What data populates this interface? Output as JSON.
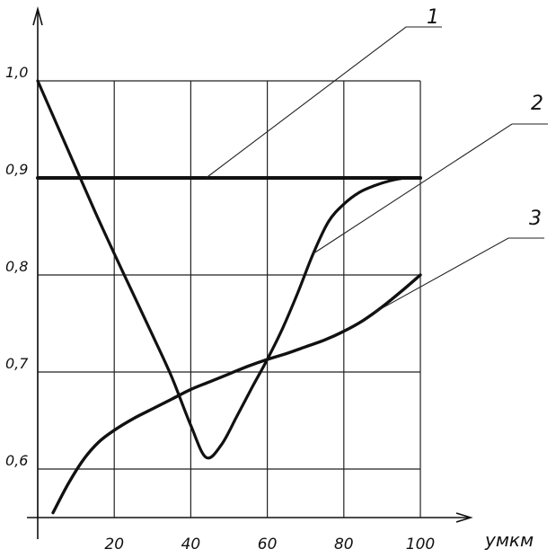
{
  "chart_data": {
    "type": "line",
    "title": "",
    "xlabel": "yмкм",
    "ylabel": "",
    "xlim": [
      0,
      100
    ],
    "ylim": [
      0.55,
      1.0
    ],
    "grid": true,
    "x_ticks": [
      "20",
      "40",
      "60",
      "80",
      "100"
    ],
    "y_ticks": [
      "1,0",
      "0,9",
      "0,8",
      "0,7",
      "0,6"
    ],
    "series": [
      {
        "name": "1",
        "x": [
          0,
          100
        ],
        "values": [
          0.9,
          0.9
        ]
      },
      {
        "name": "2",
        "x": [
          0,
          5,
          10,
          15,
          20,
          25,
          30,
          35,
          40,
          44,
          48,
          52,
          56,
          60,
          64,
          68,
          72,
          76,
          80,
          84,
          88,
          92,
          96,
          100
        ],
        "values": [
          1.0,
          0.955,
          0.91,
          0.865,
          0.822,
          0.78,
          0.738,
          0.695,
          0.645,
          0.612,
          0.625,
          0.654,
          0.684,
          0.713,
          0.745,
          0.782,
          0.822,
          0.855,
          0.873,
          0.885,
          0.892,
          0.897,
          0.9,
          0.9
        ]
      },
      {
        "name": "3",
        "x": [
          4,
          8,
          12,
          16,
          20,
          25,
          30,
          35,
          40,
          45,
          50,
          55,
          60,
          65,
          70,
          75,
          80,
          85,
          90,
          95,
          100
        ],
        "values": [
          0.555,
          0.585,
          0.61,
          0.628,
          0.64,
          0.652,
          0.662,
          0.672,
          0.682,
          0.69,
          0.698,
          0.706,
          0.713,
          0.719,
          0.726,
          0.733,
          0.742,
          0.753,
          0.767,
          0.783,
          0.8
        ]
      }
    ]
  }
}
